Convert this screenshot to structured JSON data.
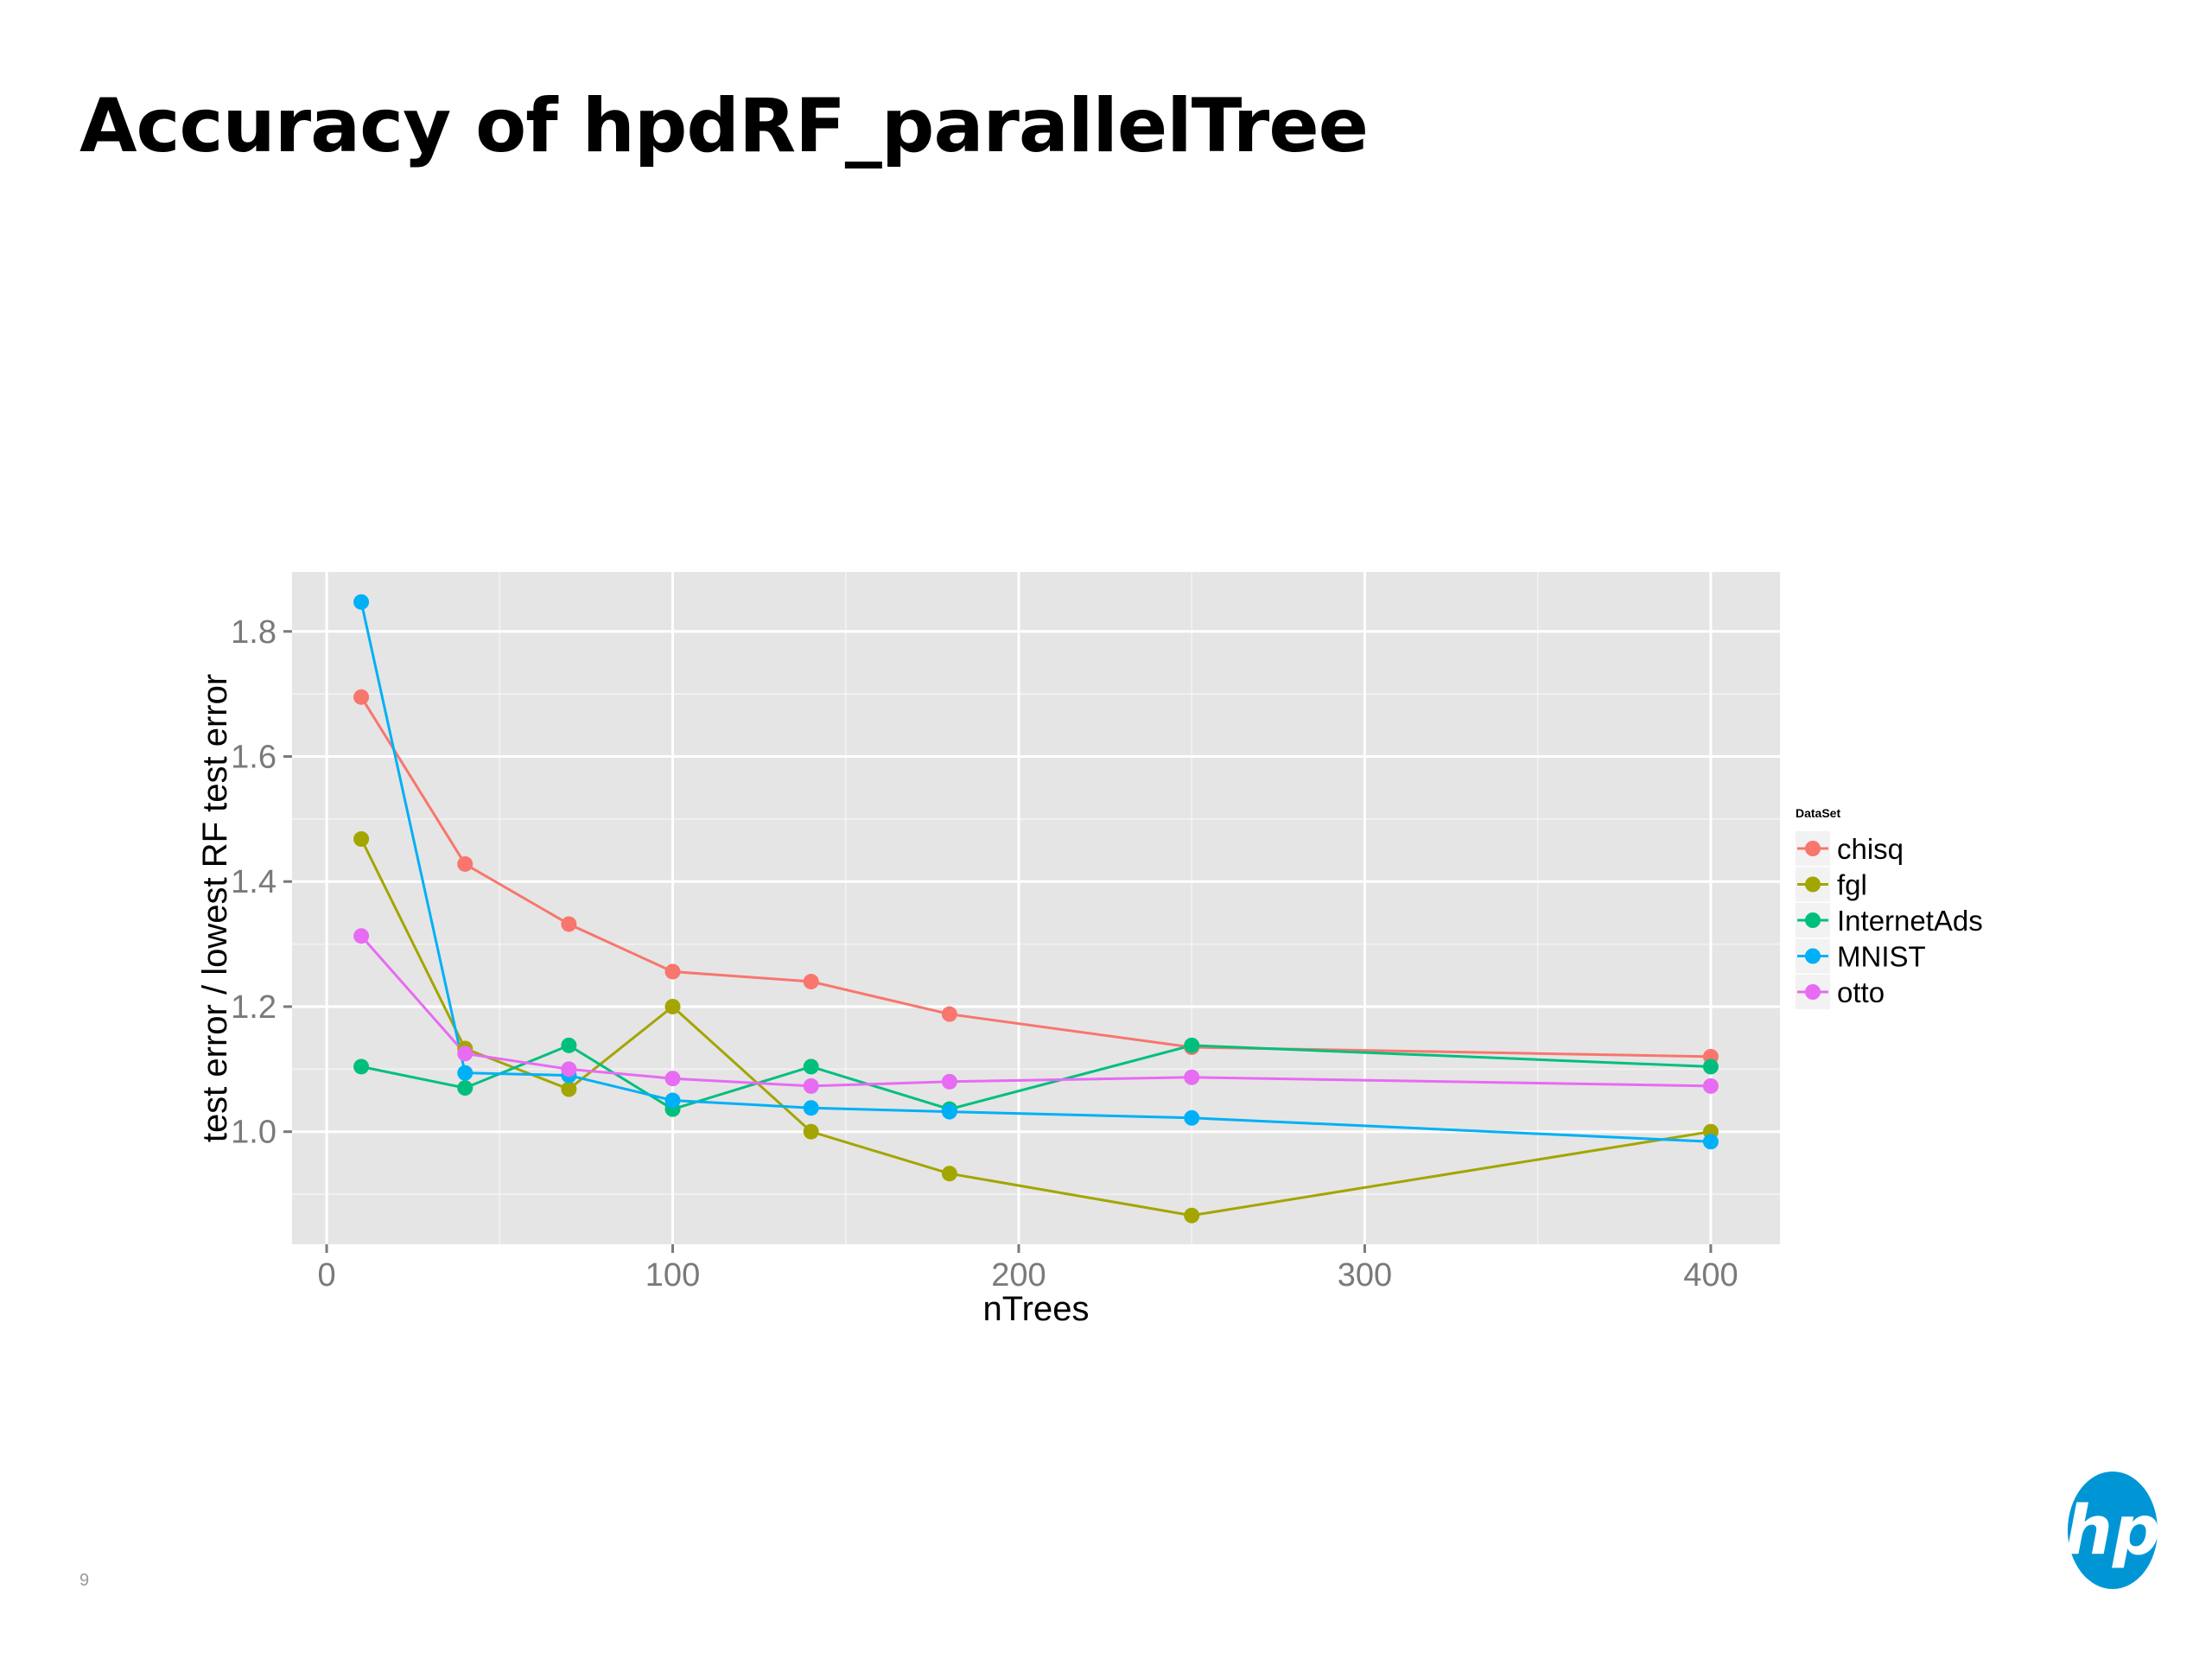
{
  "slide": {
    "title": "Accuracy of hpdRF_parallelTree",
    "page_number": "9",
    "logo_text": "hp",
    "logo_icon": "hp-logo-icon"
  },
  "colors": {
    "panel_background": "#e5e5e5",
    "grid": "#ffffff",
    "chisq": "#f8766d",
    "fgl": "#a3a500",
    "InternetAds": "#00bf7d",
    "MNIST": "#00b0f6",
    "otto": "#e76bf3",
    "logo": "#0096d6"
  },
  "chart_data": {
    "type": "line",
    "title": "",
    "xlabel": "nTrees",
    "ylabel": "test error / lowest RF test error",
    "xlim": [
      -10,
      420
    ],
    "ylim": [
      0.82,
      1.895
    ],
    "x_ticks": [
      0,
      100,
      200,
      300,
      400
    ],
    "x_tick_labels": [
      "0",
      "100",
      "200",
      "300",
      "400"
    ],
    "y_ticks": [
      1.0,
      1.2,
      1.4,
      1.6,
      1.8
    ],
    "y_tick_labels": [
      "1.0",
      "1.2",
      "1.4",
      "1.6",
      "1.8"
    ],
    "grid": true,
    "markers": true,
    "legend_title": "DataSet",
    "legend_position": "right",
    "x": [
      10,
      40,
      70,
      100,
      140,
      180,
      250,
      400
    ],
    "series": [
      {
        "name": "chisq",
        "values": [
          1.695,
          1.428,
          1.332,
          1.256,
          1.24,
          1.188,
          1.135,
          1.12
        ]
      },
      {
        "name": "fgl",
        "values": [
          1.468,
          1.133,
          1.068,
          1.2,
          1.0,
          0.933,
          0.866,
          1.0
        ]
      },
      {
        "name": "InternetAds",
        "values": [
          1.104,
          1.07,
          1.138,
          1.036,
          1.104,
          1.036,
          1.138,
          1.104
        ]
      },
      {
        "name": "MNIST",
        "values": [
          1.847,
          1.094,
          1.09,
          1.05,
          1.038,
          1.032,
          1.022,
          0.984
        ]
      },
      {
        "name": "otto",
        "values": [
          1.313,
          1.125,
          1.1,
          1.085,
          1.073,
          1.08,
          1.087,
          1.073
        ]
      }
    ]
  }
}
